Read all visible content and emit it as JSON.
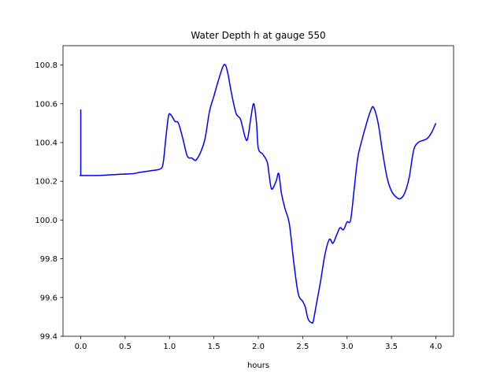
{
  "chart_data": {
    "type": "line",
    "title": "Water Depth h at gauge 550",
    "xlabel": "hours",
    "ylabel": "",
    "xlim": [
      -0.2,
      4.2
    ],
    "ylim": [
      99.4,
      100.9
    ],
    "grid": false,
    "xticks": [
      0.0,
      0.5,
      1.0,
      1.5,
      2.0,
      2.5,
      3.0,
      3.5,
      4.0
    ],
    "xtick_labels": [
      "0.0",
      "0.5",
      "1.0",
      "1.5",
      "2.0",
      "2.5",
      "3.0",
      "3.5",
      "4.0"
    ],
    "yticks": [
      99.4,
      99.6,
      99.8,
      100.0,
      100.2,
      100.4,
      100.6,
      100.8
    ],
    "ytick_labels": [
      "99.4",
      "99.6",
      "99.8",
      "100.0",
      "100.2",
      "100.4",
      "100.6",
      "100.8"
    ],
    "series": [
      {
        "color": "#0000ff",
        "x": [
          0.0,
          0.0,
          0.01,
          0.2,
          0.4,
          0.6,
          0.65,
          0.8,
          0.9,
          0.93,
          0.96,
          0.99,
          1.02,
          1.06,
          1.1,
          1.15,
          1.2,
          1.25,
          1.28,
          1.3,
          1.35,
          1.4,
          1.45,
          1.5,
          1.55,
          1.6,
          1.63,
          1.66,
          1.7,
          1.75,
          1.8,
          1.85,
          1.88,
          1.92,
          1.95,
          1.98,
          2.0,
          2.05,
          2.1,
          2.12,
          2.15,
          2.2,
          2.23,
          2.26,
          2.3,
          2.35,
          2.4,
          2.45,
          2.5,
          2.53,
          2.56,
          2.6,
          2.62,
          2.66,
          2.7,
          2.75,
          2.8,
          2.84,
          2.88,
          2.92,
          2.96,
          3.0,
          3.04,
          3.08,
          3.12,
          3.16,
          3.22,
          3.27,
          3.3,
          3.35,
          3.4,
          3.45,
          3.5,
          3.55,
          3.6,
          3.65,
          3.7,
          3.75,
          3.8,
          3.85,
          3.9,
          3.95,
          4.0
        ],
        "y": [
          100.57,
          100.23,
          100.23,
          100.23,
          100.235,
          100.24,
          100.245,
          100.255,
          100.265,
          100.3,
          100.43,
          100.54,
          100.54,
          100.51,
          100.5,
          100.42,
          100.33,
          100.32,
          100.31,
          100.31,
          100.35,
          100.42,
          100.56,
          100.64,
          100.72,
          100.79,
          100.8,
          100.75,
          100.65,
          100.55,
          100.52,
          100.43,
          100.42,
          100.54,
          100.6,
          100.5,
          100.37,
          100.34,
          100.3,
          100.24,
          100.16,
          100.2,
          100.24,
          100.14,
          100.06,
          99.98,
          99.78,
          99.62,
          99.58,
          99.55,
          99.49,
          99.47,
          99.48,
          99.58,
          99.68,
          99.82,
          99.9,
          99.88,
          99.92,
          99.96,
          99.95,
          99.99,
          100.0,
          100.16,
          100.32,
          100.4,
          100.5,
          100.57,
          100.58,
          100.5,
          100.35,
          100.22,
          100.15,
          100.12,
          100.11,
          100.14,
          100.22,
          100.36,
          100.4,
          100.41,
          100.42,
          100.45,
          100.5
        ]
      }
    ]
  }
}
